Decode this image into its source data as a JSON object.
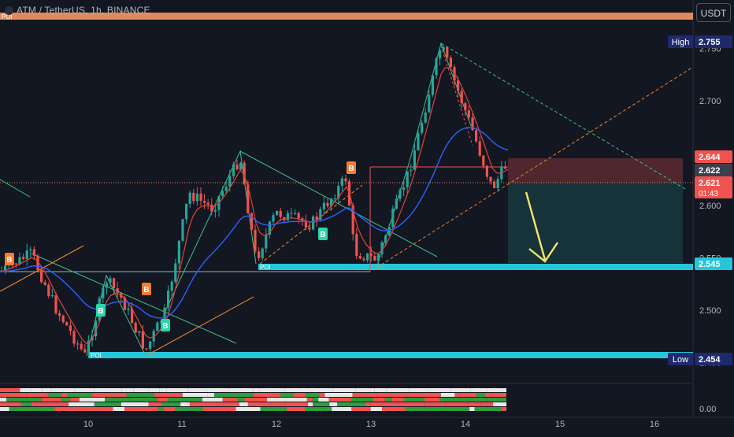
{
  "header": {
    "symbol_line": "ATM / TetherUS, 1h, BINANCE"
  },
  "toolbar": {
    "unit_label": "USDT"
  },
  "colors": {
    "background": "#131722",
    "up": "#26a69a",
    "down": "#ef5350",
    "poi": "#26c6da",
    "top_band": "#e0895a",
    "arrow": "#f2e76b",
    "buy_orange": "#f57c32",
    "buy_teal": "#2ad8a8",
    "ema_red": "#e0443a",
    "ema_blue": "#2962ff",
    "trend_green": "#3dbf8a",
    "trend_orange": "#f5892c"
  },
  "chart_data": {
    "type": "candlestick",
    "symbol": "ATM / TetherUS",
    "interval": "1h",
    "exchange": "BINANCE",
    "x_tick_labels": [
      "10",
      "11",
      "12",
      "13",
      "14",
      "15",
      "16"
    ],
    "y_tick_labels": [
      "2.750",
      "2.700",
      "2.650",
      "2.600",
      "2.550",
      "2.500",
      "2.450"
    ],
    "ylim": [
      2.44,
      2.79
    ],
    "price_labels": [
      {
        "label": "High",
        "value": "2.755"
      },
      {
        "label": "",
        "value": "2.644"
      },
      {
        "label": "",
        "value": "2.622"
      },
      {
        "label": "",
        "value": "2.621",
        "countdown": "01:43"
      },
      {
        "label": "",
        "value": "2.545"
      },
      {
        "label": "Low",
        "value": "2.454"
      }
    ],
    "poi_zones": [
      {
        "label": "POI",
        "price": 2.785
      },
      {
        "label": "POI",
        "price": 2.545
      },
      {
        "label": "POI",
        "price": 2.454
      }
    ],
    "signals": [
      {
        "text": "B",
        "type": "buy-orange"
      },
      {
        "text": "B",
        "type": "buy-teal"
      },
      {
        "text": "B",
        "type": "buy-orange"
      },
      {
        "text": "B",
        "type": "buy-teal"
      },
      {
        "text": "B",
        "type": "buy-teal"
      },
      {
        "text": "B",
        "type": "buy-orange"
      }
    ],
    "oscillator": {
      "y_tick_label": "0.00"
    },
    "grid": false
  }
}
